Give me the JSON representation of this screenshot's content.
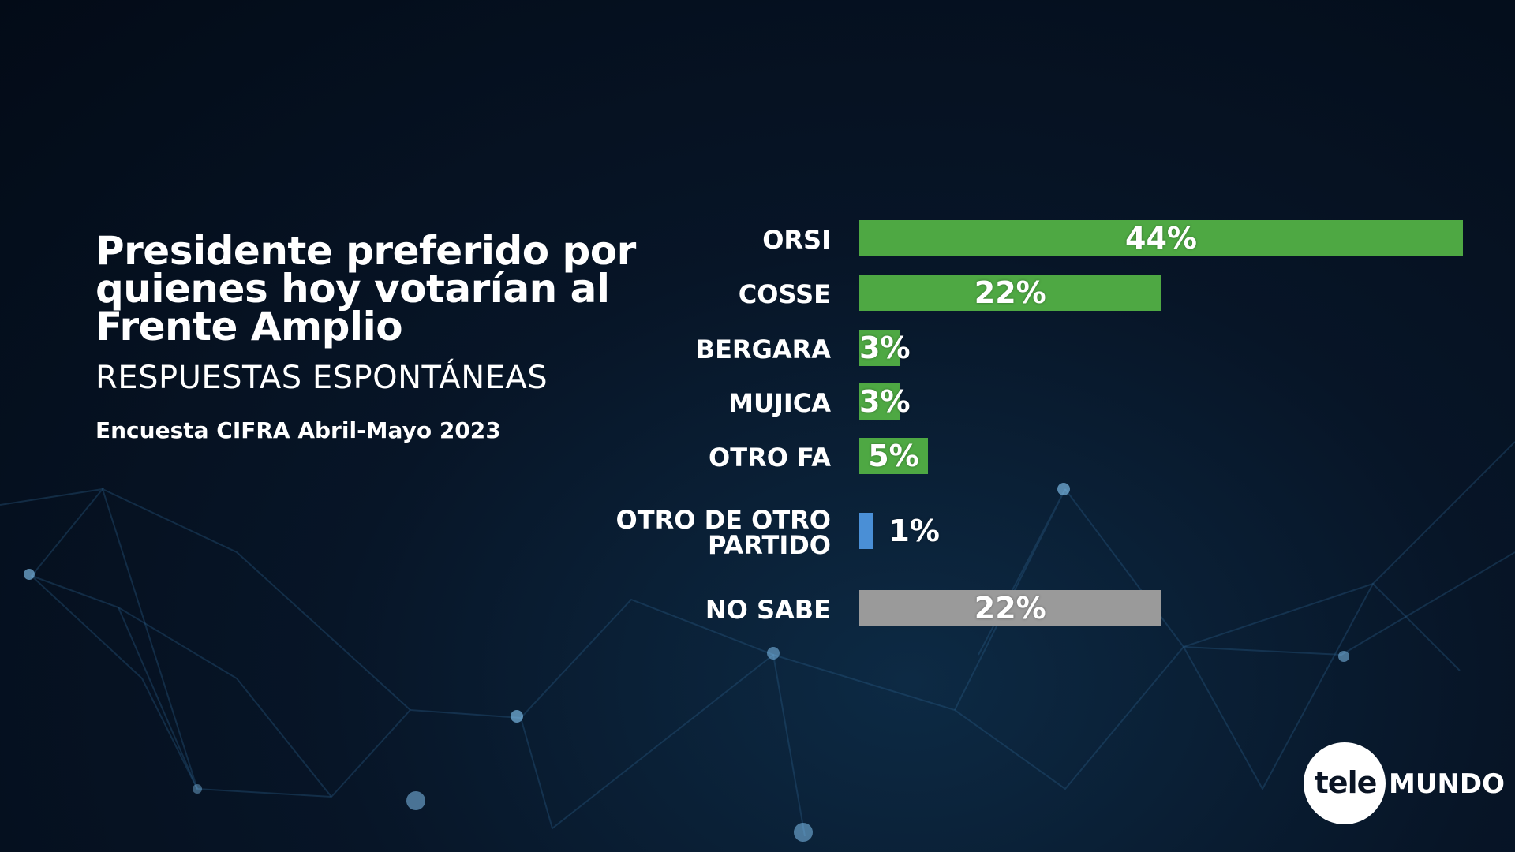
{
  "header": {
    "title": "Presidente preferido por quienes hoy votarían al Frente Amplio",
    "subtitle": "RESPUESTAS ESPONTÁNEAS",
    "source": "Encuesta CIFRA Abril-Mayo 2023"
  },
  "logo": {
    "part1": "tele",
    "part2": "MUNDO"
  },
  "colors": {
    "green": "#4ea843",
    "blue": "#4a8fd6",
    "gray": "#9a9a9a"
  },
  "chart_data": {
    "type": "bar",
    "orientation": "horizontal",
    "title": "Presidente preferido por quienes hoy votarían al Frente Amplio",
    "categories": [
      "ORSI",
      "COSSE",
      "BERGARA",
      "MUJICA",
      "OTRO FA",
      "OTRO DE OTRO PARTIDO",
      "NO SABE"
    ],
    "values": [
      44,
      22,
      3,
      3,
      5,
      1,
      22
    ],
    "labels": [
      "44%",
      "22%",
      "3%",
      "3%",
      "5%",
      "1%",
      "22%"
    ],
    "bar_colors": [
      "green",
      "green",
      "green",
      "green",
      "green",
      "blue",
      "gray"
    ],
    "unit": "%",
    "xlim": [
      0,
      44
    ]
  }
}
